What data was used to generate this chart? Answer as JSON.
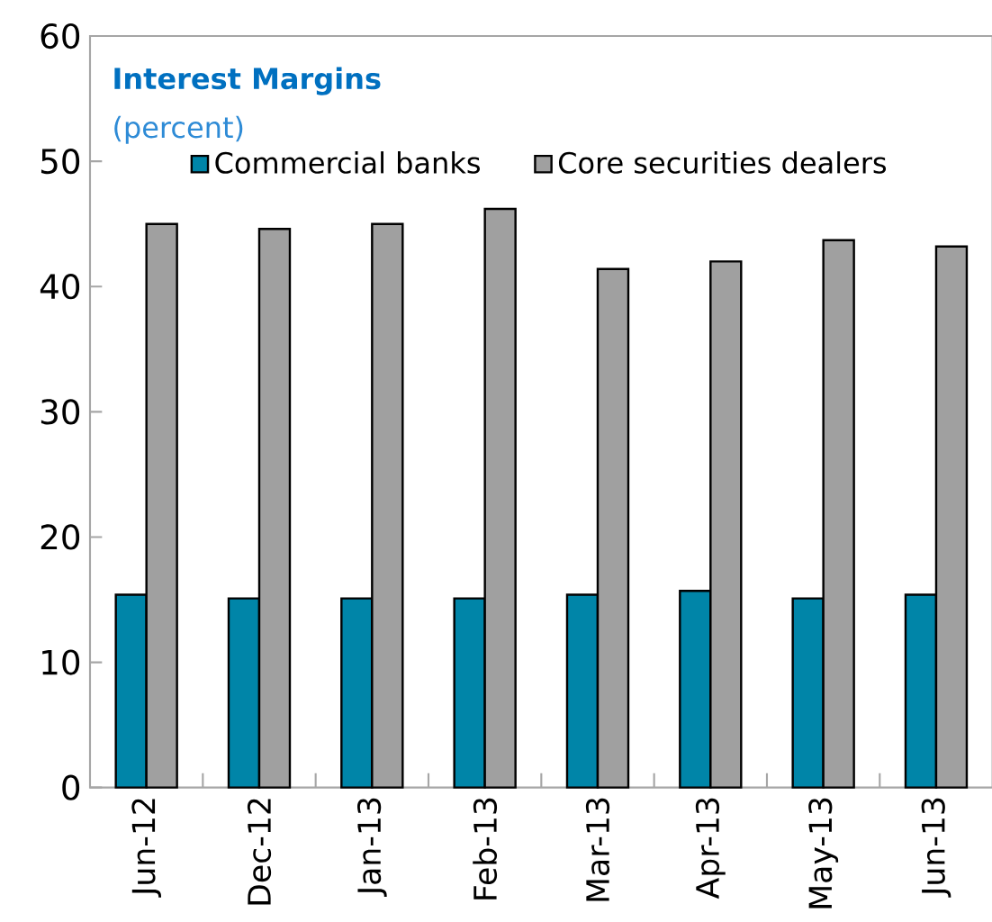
{
  "chart_data": {
    "type": "bar",
    "title": "Interest Margins",
    "subtitle": "(percent)",
    "categories": [
      "Jun-12",
      "Dec-12",
      "Jan-13",
      "Feb-13",
      "Mar-13",
      "Apr-13",
      "May-13",
      "Jun-13"
    ],
    "series": [
      {
        "name": "Commercial banks",
        "color": "#0085a8",
        "values": [
          15.4,
          15.1,
          15.1,
          15.1,
          15.4,
          15.7,
          15.1,
          15.4
        ]
      },
      {
        "name": "Core securities  dealers",
        "color": "#a0a0a0",
        "values": [
          45.0,
          44.6,
          45.0,
          46.2,
          41.4,
          42.0,
          43.7,
          43.2
        ]
      }
    ],
    "ylim": [
      0,
      60
    ],
    "yticks": [
      0,
      10,
      20,
      30,
      40,
      50,
      60
    ],
    "legend": "top",
    "grid": false
  }
}
